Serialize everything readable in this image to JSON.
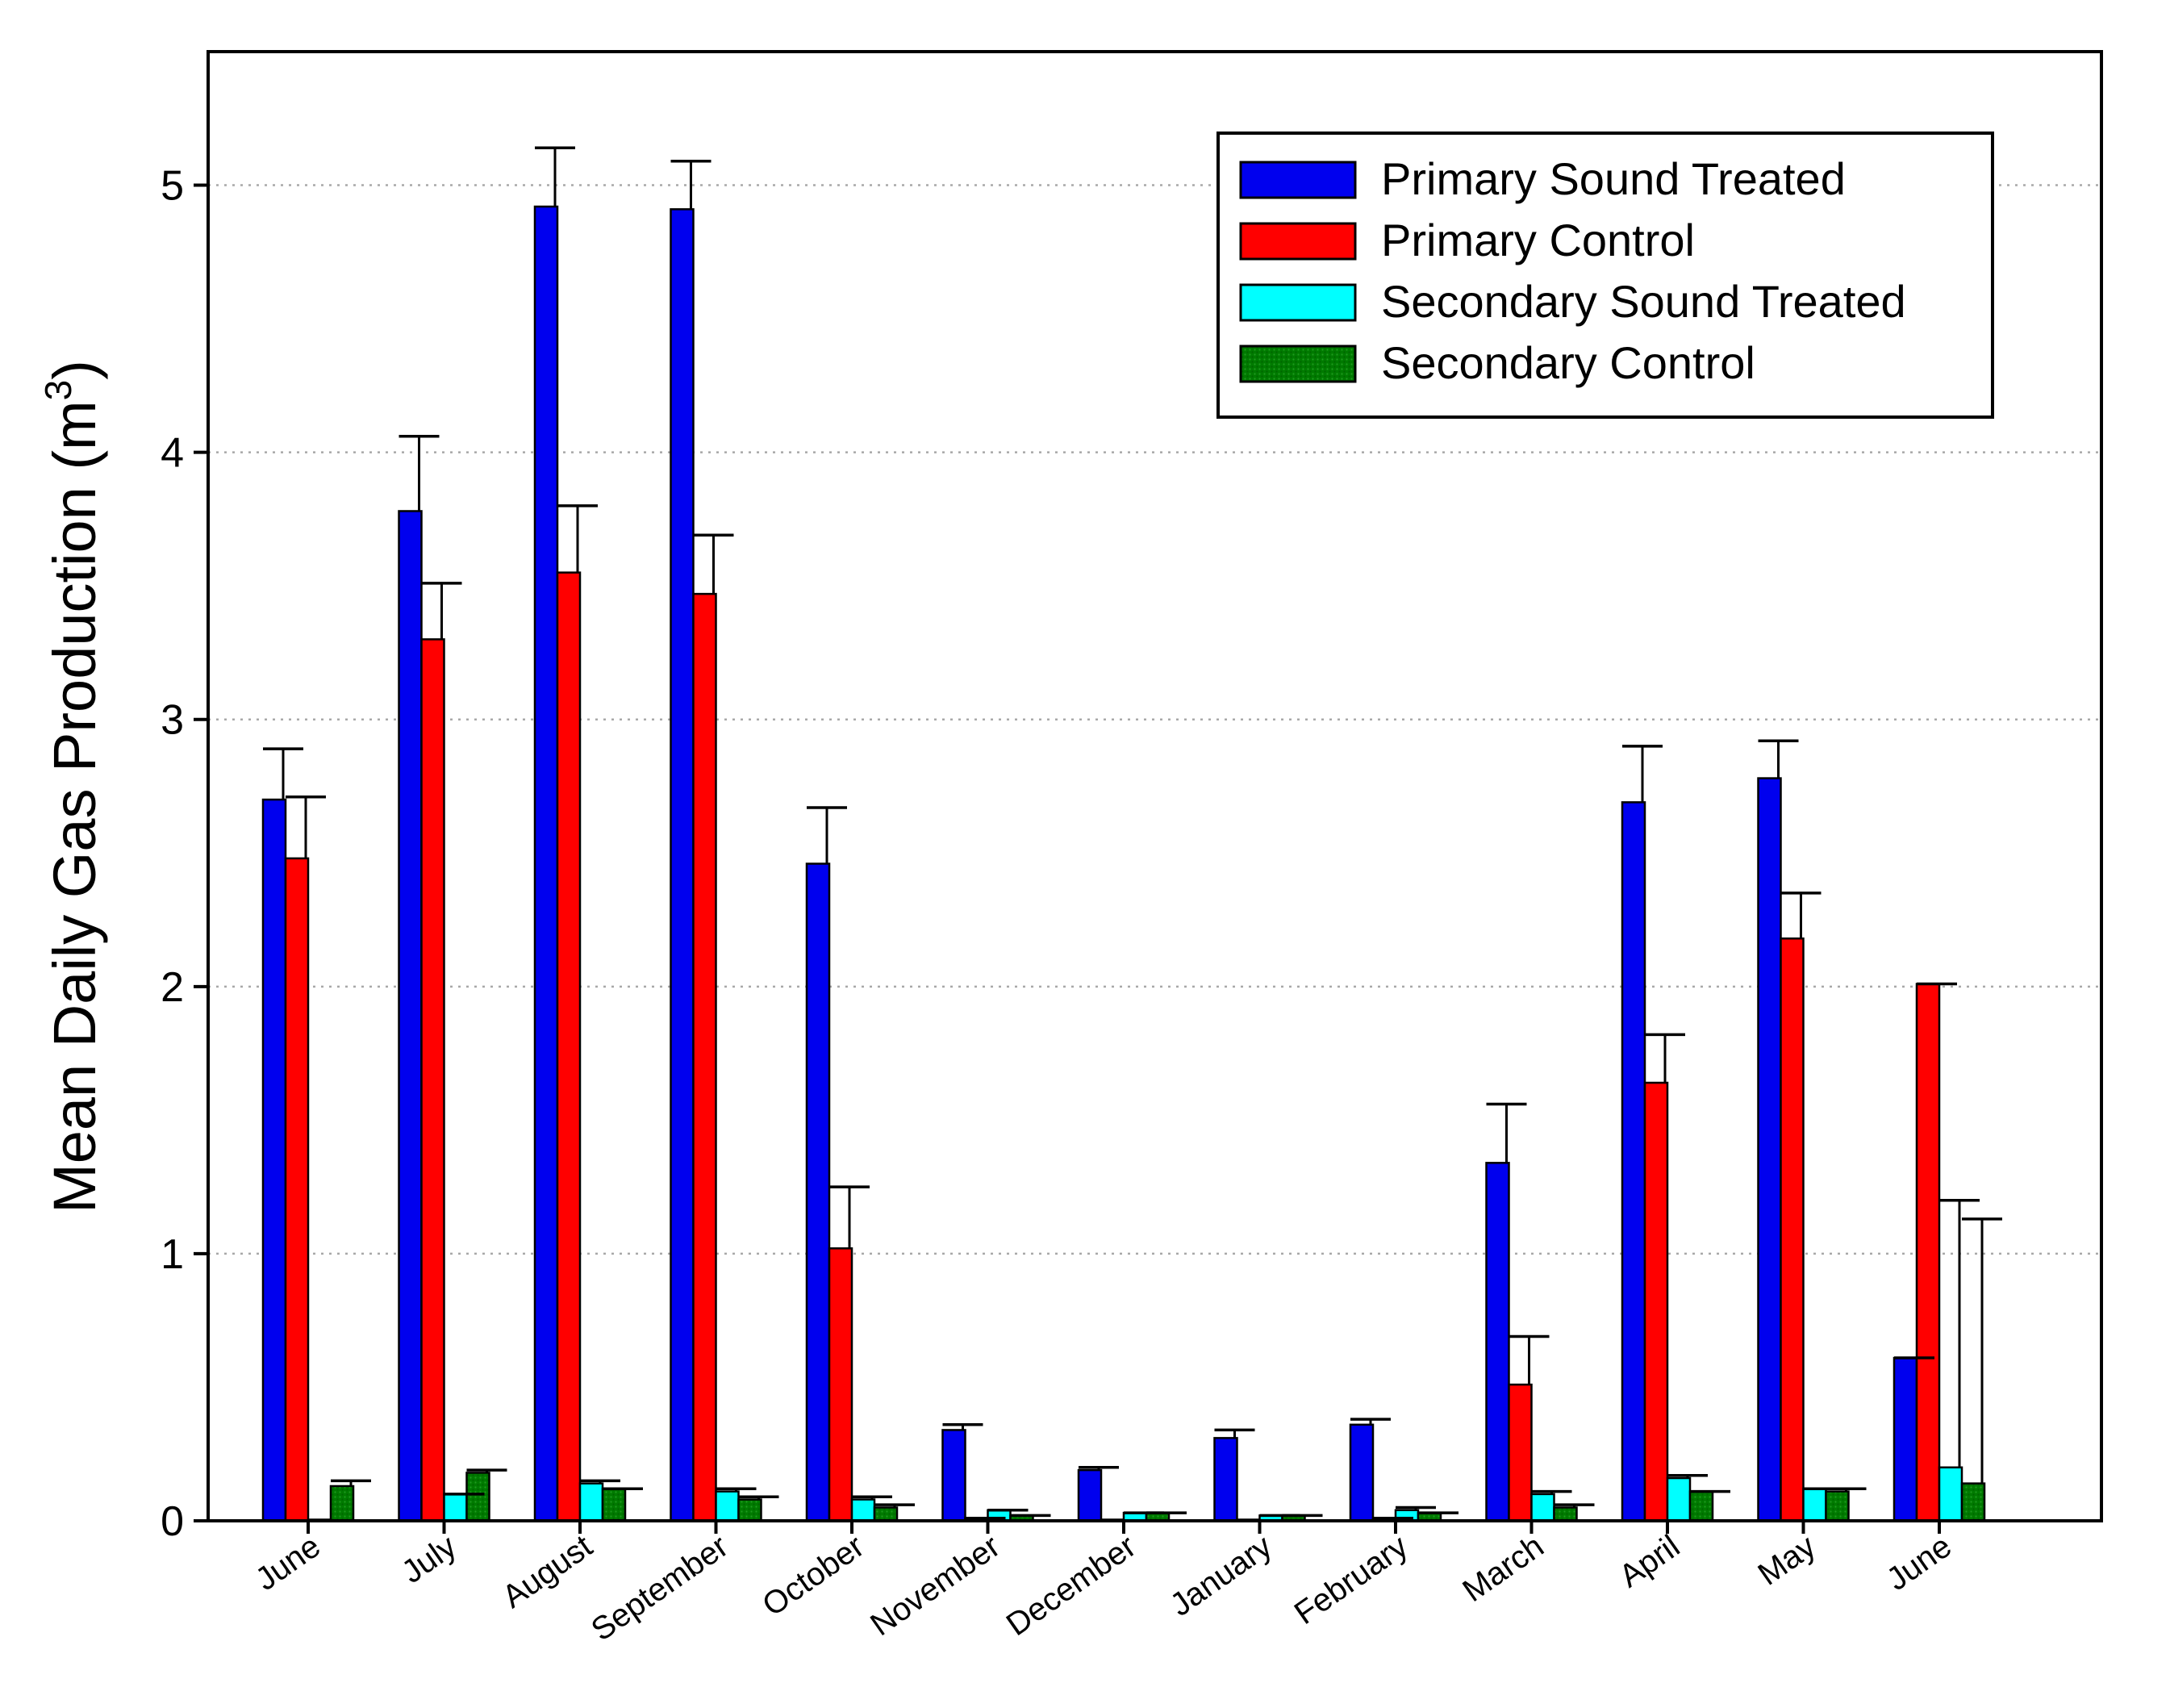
{
  "chart_data": {
    "type": "bar",
    "title": "",
    "xlabel": "",
    "ylabel": "Mean Daily Gas Production (m",
    "ylabel_superscript": "3",
    "ylabel_close": ")",
    "ylim": [
      0,
      5.5
    ],
    "yticks": [
      0,
      1,
      2,
      3,
      4,
      5
    ],
    "grid": "horizontal dotted at major ticks",
    "legend_position": "top-right",
    "categories": [
      "June",
      "July",
      "August",
      "September",
      "October",
      "November",
      "December",
      "January",
      "February",
      "March",
      "April",
      "May",
      "June"
    ],
    "series": [
      {
        "name": "Primary Sound Treated",
        "color": "#0000ee",
        "pattern": "solid",
        "values": [
          2.7,
          3.78,
          4.92,
          4.91,
          2.46,
          0.34,
          0.19,
          0.31,
          0.36,
          1.34,
          2.69,
          2.78,
          0.61
        ],
        "errors": [
          0.19,
          0.28,
          0.22,
          0.18,
          0.21,
          0.02,
          0.01,
          0.03,
          0.02,
          0.22,
          0.21,
          0.14,
          0.0
        ]
      },
      {
        "name": "Primary Control",
        "color": "#ff0000",
        "pattern": "solid",
        "values": [
          2.48,
          3.3,
          3.55,
          3.47,
          1.02,
          0.01,
          0.0,
          0.0,
          0.01,
          0.51,
          1.64,
          2.18,
          2.01
        ],
        "errors": [
          0.23,
          0.21,
          0.25,
          0.22,
          0.23,
          0.0,
          0.0,
          0.0,
          0.0,
          0.18,
          0.18,
          0.17,
          0.0
        ]
      },
      {
        "name": "Secondary Sound Treated",
        "color": "#00ffff",
        "pattern": "solid",
        "values": [
          0.0,
          0.1,
          0.14,
          0.11,
          0.08,
          0.04,
          0.03,
          0.02,
          0.04,
          0.1,
          0.16,
          0.12,
          0.2
        ],
        "errors": [
          0.0,
          0.0,
          0.01,
          0.01,
          0.01,
          0.0,
          0.0,
          0.0,
          0.01,
          0.01,
          0.01,
          0.0,
          1.0
        ]
      },
      {
        "name": "Secondary Control",
        "color": "#008000",
        "pattern": "dotted",
        "values": [
          0.13,
          0.18,
          0.12,
          0.08,
          0.05,
          0.02,
          0.03,
          0.02,
          0.03,
          0.05,
          0.11,
          0.11,
          0.14
        ],
        "errors": [
          0.02,
          0.01,
          0.0,
          0.01,
          0.01,
          0.0,
          0.0,
          0.0,
          0.0,
          0.01,
          0.0,
          0.01,
          0.99
        ]
      }
    ]
  }
}
